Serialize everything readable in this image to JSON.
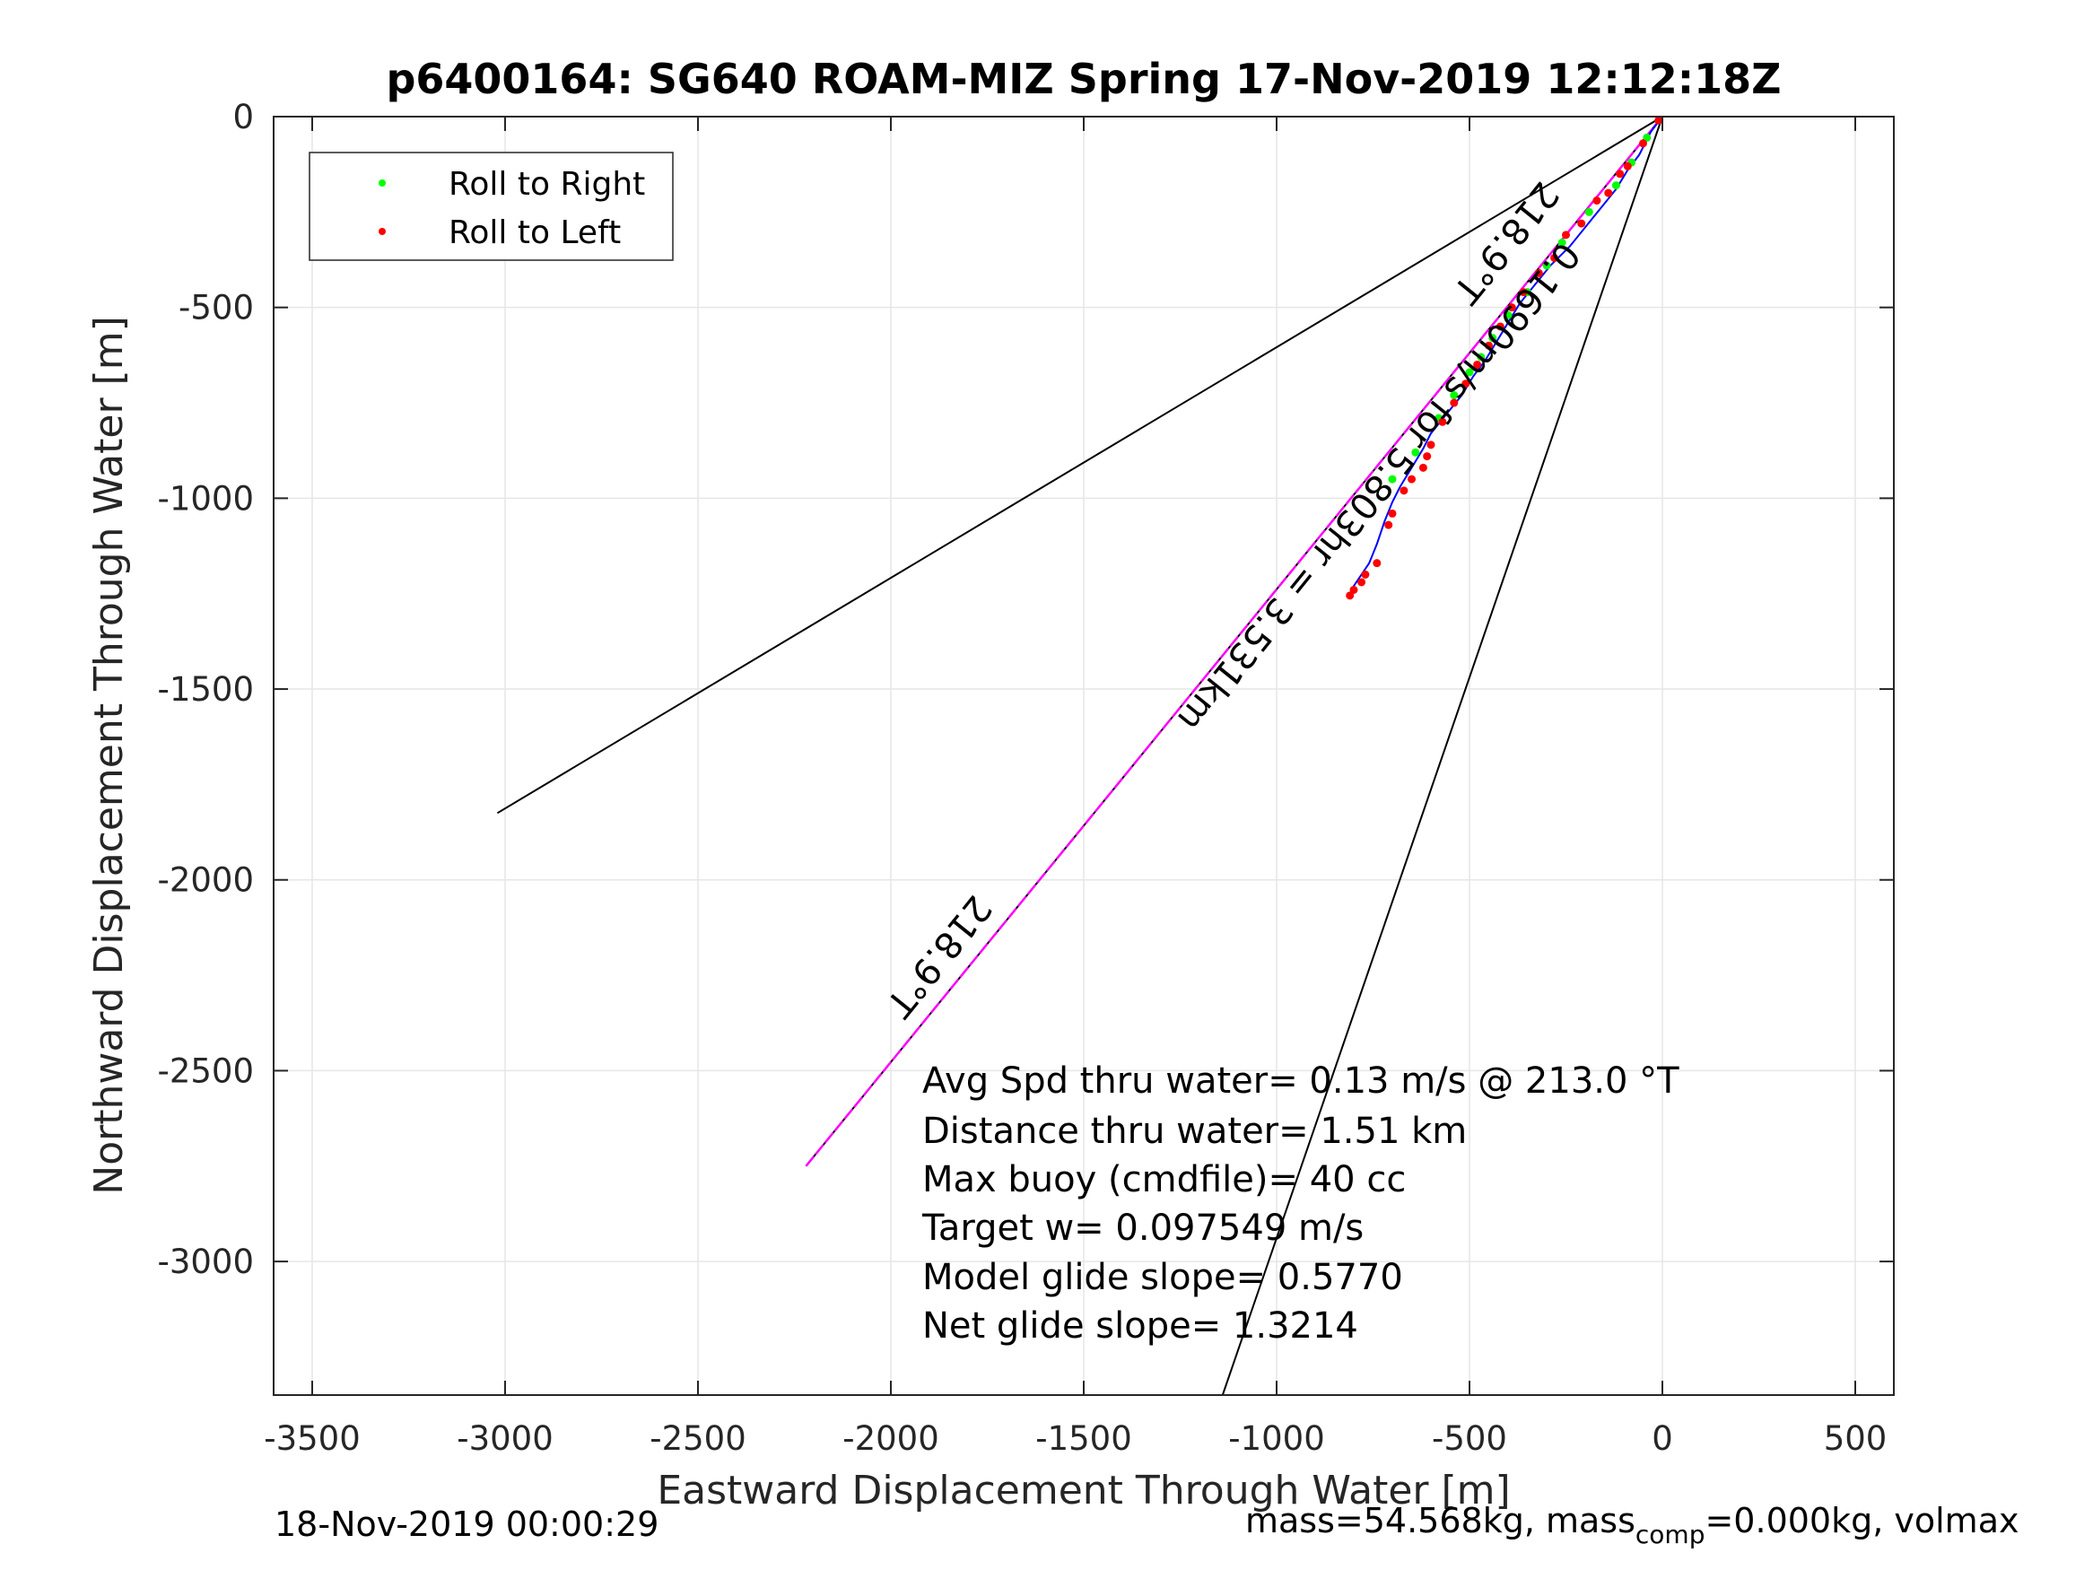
{
  "chart_data": {
    "type": "line",
    "title": "p6400164: SG640 ROAM-MIZ Spring 17-Nov-2019 12:12:18Z",
    "xlabel": "Eastward Displacement Through Water [m]",
    "ylabel": "Northward Displacement Through Water [m]",
    "xlim": [
      -3600,
      600
    ],
    "ylim": [
      -3350,
      0
    ],
    "xticks": [
      "-3500",
      "-3000",
      "-2500",
      "-2000",
      "-1500",
      "-1000",
      "-500",
      "0",
      "500"
    ],
    "yticks": [
      "0",
      "-500",
      "-1000",
      "-1500",
      "-2000",
      "-2500",
      "-3000"
    ],
    "grid": true,
    "legend_position": "top-left",
    "legend": [
      {
        "label": "Roll to Right",
        "color": "#00ff00"
      },
      {
        "label": "Roll to Left",
        "color": "#ff0000"
      }
    ],
    "cone_lines": [
      {
        "x": [
          0,
          -3020
        ],
        "y": [
          0,
          -1825
        ],
        "color": "#000000"
      },
      {
        "x": [
          0,
          -1140
        ],
        "y": [
          0,
          -3350
        ],
        "color": "#000000"
      },
      {
        "x": [
          0,
          -2220
        ],
        "y": [
          0,
          -2750
        ],
        "color": "#000000"
      }
    ],
    "course_line": {
      "x": [
        0,
        -2220
      ],
      "y": [
        0,
        -2750
      ],
      "color": "#ff00ff"
    },
    "track": {
      "color": "#0000ff",
      "x": [
        0,
        -30,
        -60,
        -90,
        -120,
        -160,
        -200,
        -240,
        -290,
        -330,
        -370,
        -400,
        -430,
        -460,
        -490,
        -520,
        -560,
        -600,
        -620,
        -650,
        -680,
        -700,
        -720,
        -740,
        -760,
        -780,
        -800,
        -810
      ],
      "y": [
        0,
        -40,
        -100,
        -140,
        -190,
        -240,
        -290,
        -340,
        -390,
        -440,
        -490,
        -540,
        -590,
        -640,
        -680,
        -730,
        -780,
        -830,
        -870,
        -920,
        -970,
        -1010,
        -1060,
        -1120,
        -1170,
        -1200,
        -1230,
        -1255
      ]
    },
    "roll_right_points": {
      "x": [
        -40,
        -80,
        -120,
        -190,
        -260,
        -300,
        -350,
        -400,
        -440,
        -470,
        -500,
        -540,
        -580,
        -640,
        -700
      ],
      "y": [
        -55,
        -120,
        -180,
        -250,
        -330,
        -390,
        -460,
        -520,
        -580,
        -630,
        -670,
        -730,
        -790,
        -880,
        -950
      ]
    },
    "roll_left_points": {
      "x": [
        -10,
        -50,
        -90,
        -110,
        -140,
        -170,
        -210,
        -250,
        -280,
        -320,
        -360,
        -390,
        -420,
        -450,
        -480,
        -510,
        -540,
        -570,
        -600,
        -610,
        -620,
        -650,
        -670,
        -700,
        -710,
        -740,
        -770,
        -780,
        -800,
        -810
      ],
      "y": [
        -10,
        -70,
        -130,
        -150,
        -200,
        -220,
        -280,
        -310,
        -370,
        -410,
        -460,
        -500,
        -550,
        -600,
        -650,
        -700,
        -750,
        -800,
        -860,
        -890,
        -920,
        -950,
        -980,
        -1040,
        -1070,
        -1170,
        -1200,
        -1220,
        -1240,
        -1255
      ]
    },
    "rotated_labels": [
      {
        "text": "218.9°T",
        "x": -430,
        "y": -310,
        "color": "#000000"
      },
      {
        "text": "0.1690m/s for 5.803hr = 3.531km",
        "x": -760,
        "y": -950,
        "color": "#000000"
      },
      {
        "text": "218.9°T",
        "x": -1900,
        "y": -2180,
        "color": "#000000"
      }
    ],
    "annotations": [
      "Avg Spd thru water=  0.13 m/s @ 213.0 °T",
      "Distance thru water=  1.51 km",
      "Max buoy (cmdfile)= 40 cc",
      "Target w= 0.097549 m/s",
      "Model glide slope= 0.5770",
      "Net glide slope= 1.3214"
    ]
  },
  "footer": {
    "left": "18-Nov-2019 00:00:29",
    "right_a": "mass=54.568kg, mass",
    "right_sub": "comp",
    "right_b": "=0.000kg, volmax"
  }
}
